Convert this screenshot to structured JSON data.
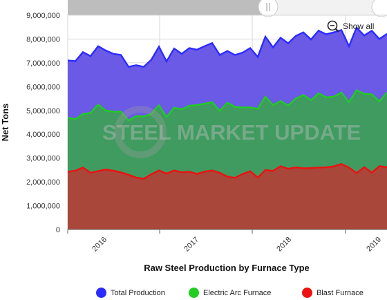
{
  "chart_data": {
    "type": "area",
    "title": "",
    "xlabel": "Raw Steel Production by Furnace Type",
    "ylabel": "Net Tons",
    "ylim": [
      0,
      9000000
    ],
    "y_ticks": [
      0,
      1000000,
      2000000,
      3000000,
      4000000,
      5000000,
      6000000,
      7000000,
      8000000,
      9000000
    ],
    "y_tick_labels": [
      "0",
      "1,000,000",
      "2,000,000",
      "3,000,000",
      "4,000,000",
      "5,000,000",
      "6,000,000",
      "7,000,000",
      "8,000,000",
      "9,000,000"
    ],
    "x_tick_labels": [
      "2016",
      "2017",
      "2018",
      "2019"
    ],
    "grid": true,
    "legend_position": "bottom",
    "stacked": false,
    "series": [
      {
        "name": "Total Production",
        "color": "#2b2bff",
        "values": [
          7100000,
          7070000,
          7450000,
          7280000,
          7700000,
          7520000,
          7380000,
          7330000,
          6830000,
          6900000,
          6830000,
          7130000,
          7680000,
          7060000,
          7600000,
          7380000,
          7620000,
          7550000,
          7700000,
          7830000,
          7330000,
          7500000,
          7330000,
          7430000,
          7620000,
          7250000,
          8100000,
          7650000,
          8050000,
          7820000,
          8130000,
          8280000,
          7980000,
          8350000,
          8200000,
          8280000,
          8380000,
          7700000,
          8480000,
          8150000,
          8350000,
          8000000,
          8220000
        ]
      },
      {
        "name": "Electric Arc Furnace",
        "color": "#22cc22",
        "values": [
          4700000,
          4630000,
          4850000,
          4900000,
          5250000,
          5000000,
          4950000,
          4950000,
          4580000,
          4760000,
          4750000,
          4850000,
          5220000,
          4720000,
          5120000,
          5050000,
          5200000,
          5230000,
          5280000,
          5350000,
          4980000,
          5330000,
          5150000,
          5120000,
          5130000,
          5070000,
          5580000,
          5230000,
          5400000,
          5200000,
          5500000,
          5650000,
          5430000,
          5720000,
          5550000,
          5580000,
          5750000,
          5350000,
          5850000,
          5700000,
          5680000,
          5380000,
          5760000
        ]
      },
      {
        "name": "Blast Furnace",
        "color": "#ee1111",
        "values": [
          2420000,
          2470000,
          2600000,
          2380000,
          2450000,
          2520000,
          2470000,
          2400000,
          2300000,
          2180000,
          2130000,
          2320000,
          2480000,
          2350000,
          2480000,
          2400000,
          2430000,
          2330000,
          2430000,
          2480000,
          2380000,
          2220000,
          2170000,
          2330000,
          2450000,
          2180000,
          2500000,
          2460000,
          2660000,
          2550000,
          2610000,
          2570000,
          2580000,
          2600000,
          2610000,
          2650000,
          2750000,
          2600000,
          2370000,
          2620000,
          2390000,
          2660000,
          2620000
        ]
      }
    ]
  },
  "watermark": "STEEL MARKET UPDATE",
  "zoom": {
    "label": "Show all",
    "icon": "zoom-out-icon"
  }
}
